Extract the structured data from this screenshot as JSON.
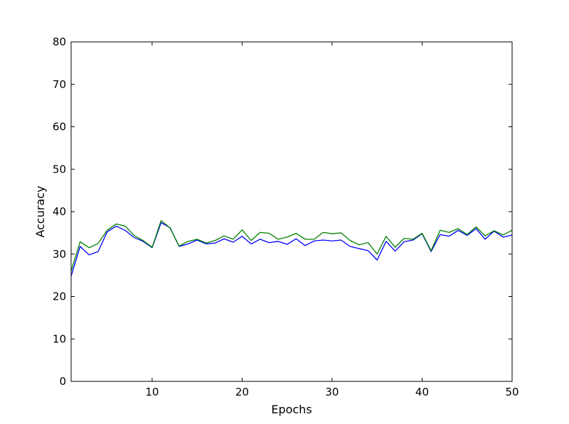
{
  "chart_data": {
    "type": "line",
    "title": "",
    "xlabel": "Epochs",
    "ylabel": "Accuracy",
    "xlim": [
      1,
      50
    ],
    "ylim": [
      0,
      80
    ],
    "xticks": [
      10,
      20,
      30,
      40,
      50
    ],
    "yticks": [
      0,
      10,
      20,
      30,
      40,
      50,
      60,
      70,
      80
    ],
    "grid": false,
    "legend": "none",
    "x": [
      1,
      2,
      3,
      4,
      5,
      6,
      7,
      8,
      9,
      10,
      11,
      12,
      13,
      14,
      15,
      16,
      17,
      18,
      19,
      20,
      21,
      22,
      23,
      24,
      25,
      26,
      27,
      28,
      29,
      30,
      31,
      32,
      33,
      34,
      35,
      36,
      37,
      38,
      39,
      40,
      41,
      42,
      43,
      44,
      45,
      46,
      47,
      48,
      49,
      50
    ],
    "series": [
      {
        "color": "#0000ff",
        "values": [
          24.8,
          31.8,
          29.8,
          30.6,
          35.2,
          36.6,
          35.6,
          33.9,
          33.0,
          31.5,
          37.4,
          36.2,
          31.8,
          32.4,
          33.3,
          32.4,
          32.6,
          33.6,
          32.8,
          34.2,
          32.4,
          33.5,
          32.7,
          33.0,
          32.3,
          33.6,
          32.0,
          33.1,
          33.3,
          33.1,
          33.3,
          31.8,
          31.3,
          30.8,
          28.6,
          33.0,
          30.7,
          32.9,
          33.3,
          34.8,
          30.6,
          34.6,
          34.2,
          35.6,
          34.4,
          36.0,
          33.5,
          35.4,
          34.0,
          34.5
        ]
      },
      {
        "color": "#008000",
        "values": [
          26.0,
          32.9,
          31.5,
          32.5,
          35.6,
          37.1,
          36.6,
          34.4,
          33.2,
          31.6,
          37.9,
          36.1,
          31.9,
          33.0,
          33.5,
          32.6,
          33.2,
          34.3,
          33.5,
          35.7,
          33.2,
          35.1,
          34.9,
          33.5,
          34.0,
          34.9,
          33.5,
          33.5,
          35.1,
          34.8,
          35.0,
          33.2,
          32.2,
          32.7,
          30.0,
          34.2,
          31.6,
          33.7,
          33.5,
          34.9,
          30.8,
          35.6,
          35.1,
          36.0,
          34.6,
          36.4,
          34.3,
          35.5,
          34.5,
          35.6
        ]
      }
    ]
  }
}
